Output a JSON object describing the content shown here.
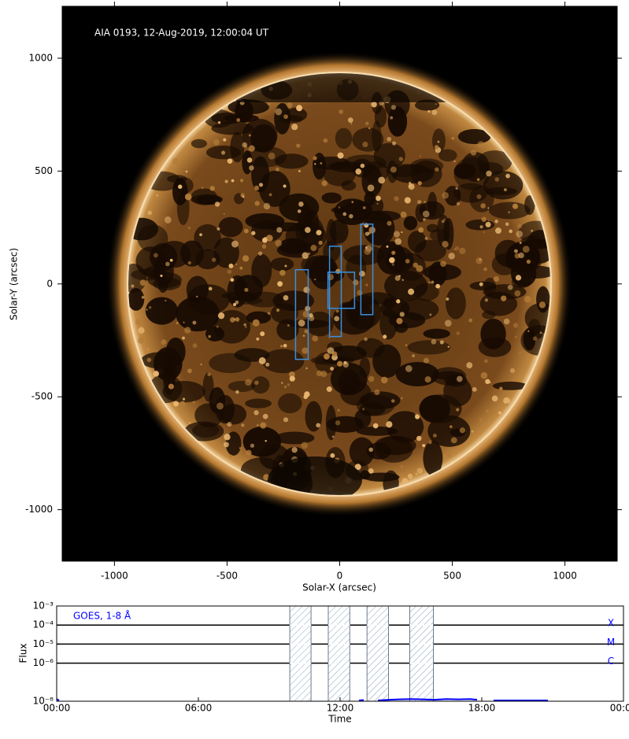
{
  "chart_data": [
    {
      "type": "image",
      "annotation": "AIA 0193, 12-Aug-2019, 12:00:04 UT",
      "xlabel": "Solar-X (arcsec)",
      "ylabel": "Solar-Y (arcsec)",
      "xlim": [
        -1232,
        1232
      ],
      "ylim": [
        -1228,
        1230
      ],
      "xticks": [
        -1000,
        -500,
        0,
        500,
        1000
      ],
      "yticks": [
        -1000,
        -500,
        0,
        500,
        1000
      ],
      "box_color": "#3b8fe0",
      "boxes": [
        {
          "x": [
            -196,
            -140
          ],
          "y": [
            -334,
            63
          ]
        },
        {
          "x": [
            -45,
            7
          ],
          "y": [
            -233,
            167
          ]
        },
        {
          "x": [
            -52,
            66
          ],
          "y": [
            -108,
            52
          ]
        },
        {
          "x": [
            94,
            147
          ],
          "y": [
            -136,
            265
          ]
        }
      ]
    },
    {
      "type": "line",
      "xlabel": "Time",
      "ylabel": "Flux",
      "log_y": true,
      "xlim": [
        0,
        24
      ],
      "xticks": [
        {
          "value": 0,
          "label": "00:00"
        },
        {
          "value": 6,
          "label": "06:00"
        },
        {
          "value": 12,
          "label": "12:00"
        },
        {
          "value": 18,
          "label": "18:00"
        },
        {
          "value": 24,
          "label": "00:00"
        }
      ],
      "ylim": [
        1e-08,
        0.001
      ],
      "yticks": [
        {
          "value": 1e-08,
          "label": "10⁻⁸"
        },
        {
          "value": 1e-06,
          "label": "10⁻⁶"
        },
        {
          "value": 1e-05,
          "label": "10⁻⁵"
        },
        {
          "value": 0.0001,
          "label": "10⁻⁴"
        },
        {
          "value": 0.001,
          "label": "10⁻³"
        }
      ],
      "levels": [
        {
          "value": 0.0001,
          "label": "X"
        },
        {
          "value": 1e-05,
          "label": "M"
        },
        {
          "value": 1e-06,
          "label": "C"
        }
      ],
      "windows": [
        [
          9.87,
          10.77
        ],
        [
          11.5,
          12.41
        ],
        [
          13.14,
          14.05
        ],
        [
          14.95,
          15.95
        ]
      ],
      "series": [
        {
          "name": "GOES, 1-8 Å",
          "color": "#0000ff",
          "x": [
            0,
            0.1,
            0.2,
            12.8,
            13.0,
            13.3,
            13.6,
            14.1,
            14.5,
            15.0,
            15.5,
            16.0,
            16.5,
            17.0,
            17.5,
            17.8,
            18.0,
            18.5,
            20.0,
            20.5,
            20.8
          ],
          "values": [
            1.3e-08,
            1.1e-08,
            null,
            1.1e-08,
            1.15e-08,
            null,
            1.1e-08,
            1.2e-08,
            1.25e-08,
            1.3e-08,
            1.25e-08,
            1.2e-08,
            1.3e-08,
            1.25e-08,
            1.3e-08,
            1.2e-08,
            null,
            1.1e-08,
            1.1e-08,
            1.1e-08,
            1.1e-08
          ]
        }
      ]
    }
  ]
}
